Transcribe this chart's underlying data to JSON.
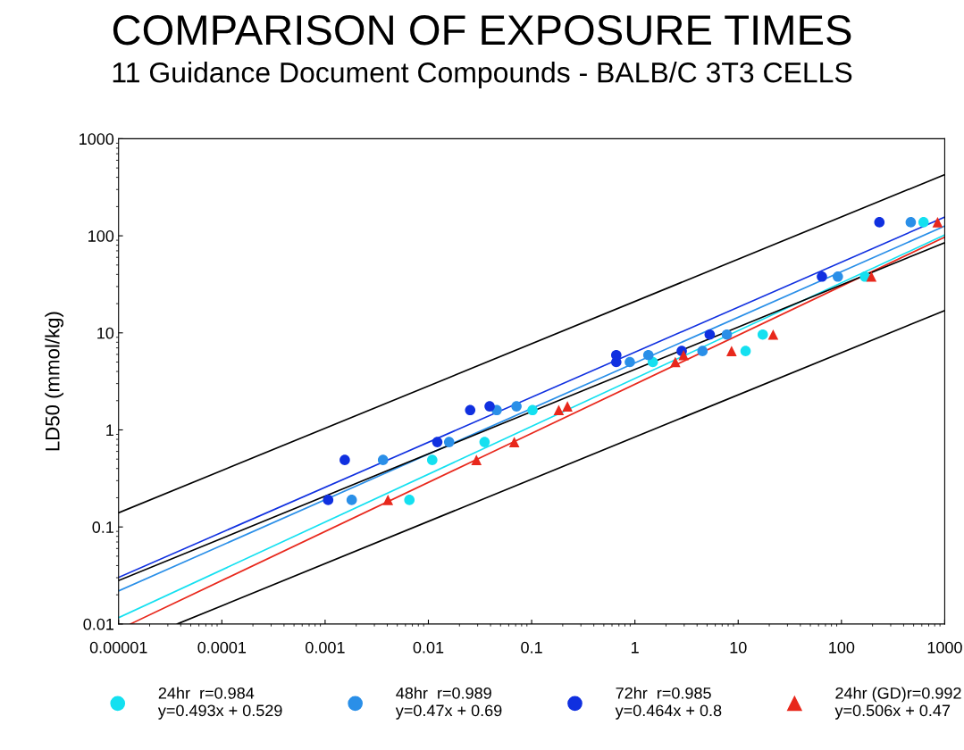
{
  "chart_data": {
    "type": "scatter",
    "title": "COMPARISON OF EXPOSURE TIMES",
    "subtitle": "11 Guidance Document Compounds - BALB/C 3T3 CELLS",
    "ylabel": "LD50 (mmol/kg)",
    "log": "xy",
    "grid": false,
    "legend": "bottom",
    "xlim": [
      1e-05,
      1000
    ],
    "xticks": [
      {
        "value": 1e-05,
        "label": "0.00001"
      },
      0.0001,
      0.001,
      0.01,
      0.1,
      1,
      10,
      100,
      1000
    ],
    "ylim": [
      0.01,
      1000
    ],
    "yticks": [
      0.01,
      0.1,
      1,
      10,
      100,
      1000
    ],
    "series": [
      {
        "name": "24hr  r=0.984\ny=0.493x + 0.529",
        "color": "#14e0f0",
        "marker": "circle",
        "x": [
          0.00655,
          0.0109,
          0.035,
          0.102,
          1.49,
          11.8,
          17.3,
          169,
          624
        ],
        "values": [
          0.19,
          0.49,
          0.75,
          1.6,
          5.0,
          6.5,
          9.6,
          38,
          138
        ]
      },
      {
        "name": "48hr  r=0.989\ny=0.47x + 0.69",
        "color": "#2a8fe8",
        "marker": "circle",
        "x": [
          0.00181,
          0.00364,
          0.0159,
          0.0459,
          0.0713,
          0.893,
          1.35,
          4.51,
          7.76,
          92.3,
          469
        ],
        "values": [
          0.19,
          0.49,
          0.75,
          1.6,
          1.75,
          5.0,
          5.9,
          6.5,
          9.6,
          38,
          138
        ]
      },
      {
        "name": "72hr  r=0.985\ny=0.464x + 0.8",
        "color": "#1030e0",
        "marker": "circle",
        "x": [
          0.00107,
          0.00155,
          0.0122,
          0.0254,
          0.0392,
          0.66,
          0.66,
          2.84,
          5.3,
          64.7,
          233
        ],
        "values": [
          0.19,
          0.49,
          0.75,
          1.6,
          1.75,
          5.0,
          5.9,
          6.5,
          9.6,
          38,
          138
        ]
      },
      {
        "name": "24hr (GD)r=0.992\ny=0.506x + 0.47",
        "color": "#e8281c",
        "marker": "triangle",
        "x": [
          0.00406,
          0.0292,
          0.0679,
          0.183,
          0.222,
          2.46,
          2.96,
          8.63,
          21.8,
          195,
          853
        ],
        "values": [
          0.19,
          0.49,
          0.75,
          1.6,
          1.75,
          5.0,
          5.9,
          6.5,
          9.6,
          38,
          138
        ]
      },
      {
        "type": "line",
        "color": "#14e0f0",
        "x": [
          1e-05,
          1000
        ],
        "values": [
          0.0116,
          102
        ]
      },
      {
        "type": "line",
        "color": "#2a8fe8",
        "x": [
          1e-05,
          1000
        ],
        "values": [
          0.0219,
          126
        ]
      },
      {
        "type": "line",
        "color": "#1030e0",
        "x": [
          1e-05,
          1000
        ],
        "values": [
          0.0302,
          156
        ]
      },
      {
        "type": "line",
        "color": "#e8281c",
        "x": [
          1.3e-05,
          1000
        ],
        "values": [
          0.01,
          97
        ]
      },
      {
        "type": "line",
        "color": "#000000",
        "x": [
          1e-05,
          1000
        ],
        "values": [
          0.028,
          85
        ]
      },
      {
        "type": "line",
        "color": "#000000",
        "x": [
          1e-05,
          1000
        ],
        "values": [
          0.14,
          427
        ]
      },
      {
        "type": "line",
        "color": "#000000",
        "x": [
          3.7e-05,
          1000
        ],
        "values": [
          0.01,
          17
        ]
      }
    ]
  }
}
